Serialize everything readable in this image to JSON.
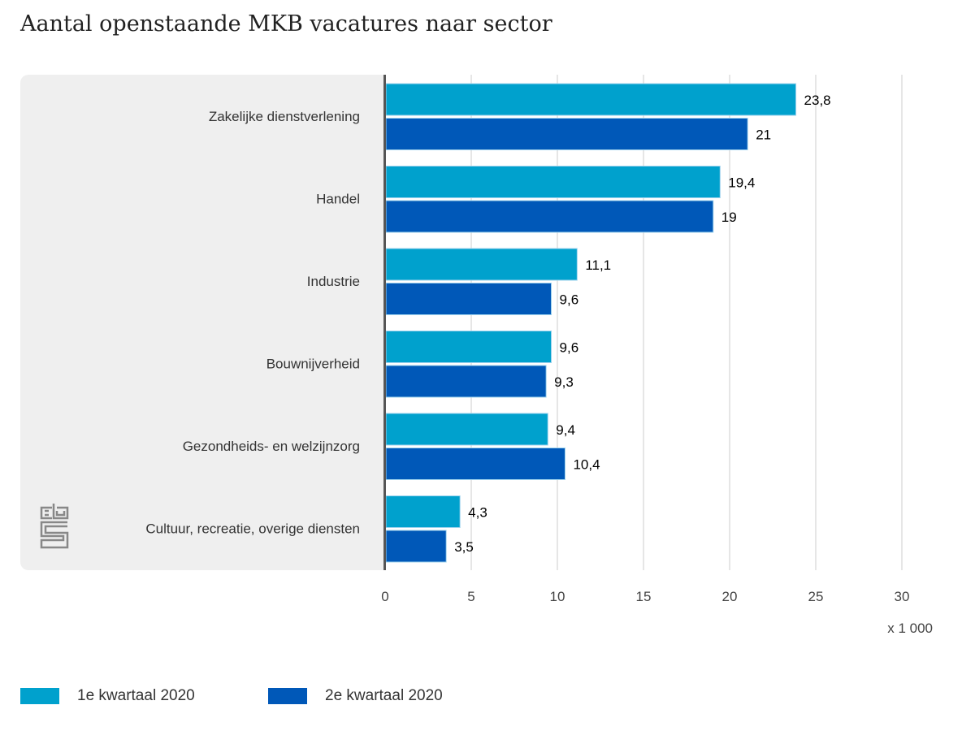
{
  "chart_data": {
    "type": "bar",
    "orientation": "horizontal",
    "title": "Aantal openstaande MKB vacatures naar sector",
    "categories": [
      "Zakelijke dienstverlening",
      "Handel",
      "Industrie",
      "Bouwnijverheid",
      "Gezondheids- en welzijnzorg",
      "Cultuur, recreatie, overige diensten"
    ],
    "series": [
      {
        "name": "1e kwartaal 2020",
        "color": "#00a1cd",
        "values": [
          23.8,
          19.4,
          11.1,
          9.6,
          9.4,
          4.3
        ],
        "labels": [
          "23,8",
          "19,4",
          "11,1",
          "9,6",
          "9,4",
          "4,3"
        ]
      },
      {
        "name": "2e kwartaal 2020",
        "color": "#0058b8",
        "values": [
          21,
          19,
          9.6,
          9.3,
          10.4,
          3.5
        ],
        "labels": [
          "21",
          "19",
          "9,6",
          "9,3",
          "10,4",
          "3,5"
        ]
      }
    ],
    "xlim": [
      0,
      30
    ],
    "xticks": [
      0,
      5,
      10,
      15,
      20,
      25,
      30
    ],
    "xtick_labels": [
      "0",
      "5",
      "10",
      "15",
      "20",
      "25",
      "30"
    ],
    "xlabel": "x 1 000",
    "grid": true,
    "legend": "bottom-left"
  },
  "logo": "cbs"
}
